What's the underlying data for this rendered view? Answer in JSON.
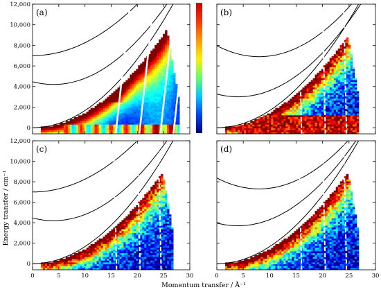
{
  "figure": {
    "xlabel": "Momentum transfer / Å⁻¹",
    "ylabel": "Energy transfer / cm⁻¹"
  },
  "chart_data": {
    "type": "heatmap",
    "xlim": [
      0,
      30
    ],
    "ylim": [
      -600,
      12000
    ],
    "x_ticks": [
      0,
      5,
      10,
      15,
      20,
      25,
      30
    ],
    "x_tick_labels": [
      "0",
      "5",
      "10",
      "15",
      "20",
      "25",
      "30"
    ],
    "y_ticks": [
      0,
      2000,
      4000,
      6000,
      8000,
      10000,
      12000
    ],
    "y_tick_labels": [
      "0",
      "2,000",
      "4,000",
      "6,000",
      "8,000",
      "10,000",
      "12,000"
    ],
    "colorbar": {
      "colors": [
        "#cc0000",
        "#ff3300",
        "#ff9900",
        "#ffee00",
        "#66ff66",
        "#00ccff",
        "#0044ff",
        "#00007a"
      ]
    },
    "panels": [
      {
        "label": "(a)",
        "label_color": "#000000",
        "recoil_curves": [
          [
            0,
            0
          ],
          [
            4,
            4200
          ],
          [
            0,
            7000
          ]
        ],
        "cut_curves": [
          16,
          20.5,
          24.5,
          27
        ]
      },
      {
        "label": "(b)",
        "label_color": "#000000",
        "recoil_curves": [
          [
            0,
            0
          ],
          [
            4,
            3000
          ],
          [
            8,
            6900
          ]
        ],
        "cut_curves": [
          16,
          20.5,
          24.5
        ]
      },
      {
        "label": "(c)",
        "label_color": "#000000",
        "recoil_curves": [
          [
            0,
            0
          ],
          [
            4,
            4200
          ],
          [
            0,
            7000
          ]
        ],
        "cut_curves": [
          16,
          20.5,
          24.5
        ]
      },
      {
        "label": "(d)",
        "label_color": "#000000",
        "recoil_curves": [
          [
            0,
            0
          ],
          [
            4,
            3700
          ],
          [
            8,
            7300
          ]
        ],
        "cut_curves": [
          16,
          20.5,
          24.5
        ]
      }
    ]
  }
}
